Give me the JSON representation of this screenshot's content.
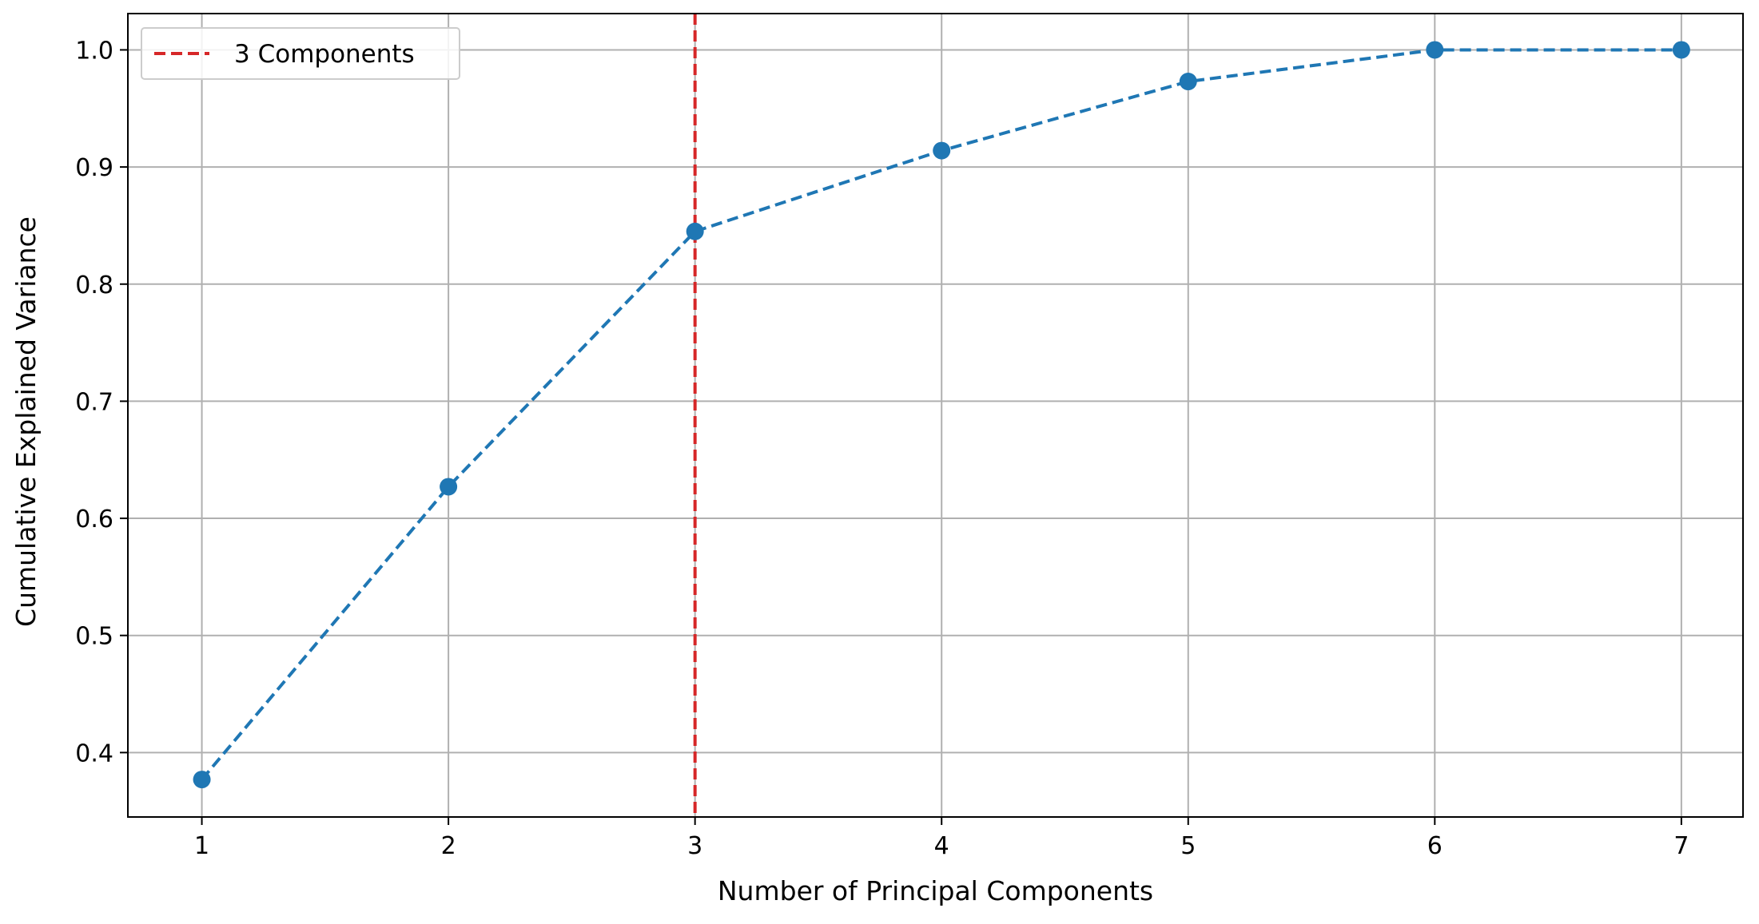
{
  "chart_data": {
    "type": "line",
    "title": "",
    "xlabel": "Number of Principal Components",
    "ylabel": "Cumulative Explained Variance",
    "x": [
      1,
      2,
      3,
      4,
      5,
      6,
      7
    ],
    "xticks": [
      "1",
      "2",
      "3",
      "4",
      "5",
      "6",
      "7"
    ],
    "xlim": [
      0.7,
      7.25
    ],
    "yticks": [
      "0.4",
      "0.5",
      "0.6",
      "0.7",
      "0.8",
      "0.9",
      "1.0"
    ],
    "ylim": [
      0.345,
      1.031
    ],
    "grid": true,
    "series": [
      {
        "values": [
          0.377,
          0.627,
          0.845,
          0.914,
          0.973,
          1.0,
          1.0
        ],
        "color": "#1f77b4",
        "line_style": "dashed",
        "marker": "circle"
      }
    ],
    "reference_lines": [
      {
        "orientation": "vertical",
        "x": 3,
        "label": "3 Components",
        "color": "#d62728",
        "line_style": "dashed"
      }
    ],
    "legend": {
      "placement": "top-left",
      "entries": [
        {
          "label": "3 Components",
          "color": "#d62728",
          "line_style": "dashed"
        }
      ]
    }
  }
}
